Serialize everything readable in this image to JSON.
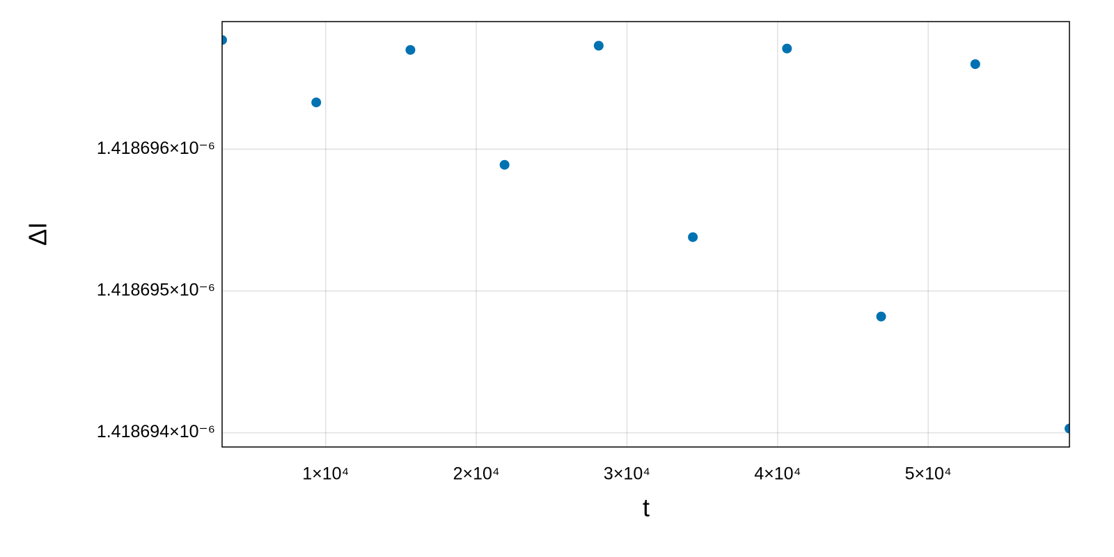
{
  "chart_data": {
    "type": "scatter",
    "x_label": "t",
    "y_label": "ΔI",
    "x": [
      3125,
      9375,
      15625,
      21875,
      28125,
      34375,
      40625,
      46875,
      53125,
      59375
    ],
    "series": [
      {
        "color": "#0072b2",
        "values": [
          1.41869677e-06,
          1.41869633e-06,
          1.4186967e-06,
          1.41869589e-06,
          1.41869673e-06,
          1.41869538e-06,
          1.41869671e-06,
          1.41869482e-06,
          1.4186966e-06,
          1.41869403e-06
        ]
      }
    ],
    "xlim": [
      3125,
      59375
    ],
    "ylim": [
      1.4186939e-06,
      1.4186969e-06
    ],
    "xticks": [
      {
        "value": 10000,
        "label": "1×10⁴"
      },
      {
        "value": 20000,
        "label": "2×10⁴"
      },
      {
        "value": 30000,
        "label": "3×10⁴"
      },
      {
        "value": 40000,
        "label": "4×10⁴"
      },
      {
        "value": 50000,
        "label": "5×10⁴"
      }
    ],
    "yticks": [
      {
        "value": 1.418694e-06,
        "label": "1.418694×10⁻⁶"
      },
      {
        "value": 1.418695e-06,
        "label": "1.418695×10⁻⁶"
      },
      {
        "value": 1.418696e-06,
        "label": "1.418696×10⁻⁶"
      }
    ],
    "grid": true
  }
}
